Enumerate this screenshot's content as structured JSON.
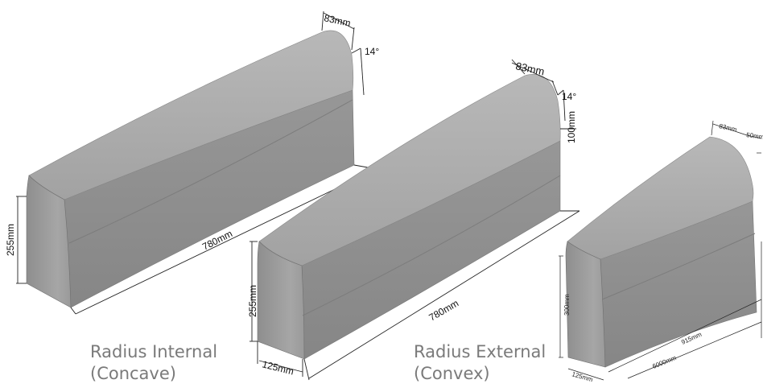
{
  "curb_internal": {
    "top_width": "83mm",
    "angle": "14°",
    "height": "255mm",
    "length": "780mm"
  },
  "curb_external": {
    "top_width": "83mm",
    "angle": "14°",
    "chamfer_height": "100mm",
    "height": "255mm",
    "length": "780mm",
    "base_width": "125mm"
  },
  "curb_third": {
    "top_width": "83mm",
    "chamfer": "50mm",
    "height": "300mm",
    "base_width": "125mm",
    "length": "915mm",
    "radius": "6000mm"
  },
  "captions": {
    "internal_line1": "Radius Internal",
    "internal_line2": "(Concave)",
    "external_line1": "Radius External",
    "external_line2": "(Convex)"
  },
  "colors": {
    "block_top": "#a4a4a4",
    "block_side": "#8c8c8c",
    "block_end": "#9e9e9e",
    "caption": "#7a7a7a"
  }
}
